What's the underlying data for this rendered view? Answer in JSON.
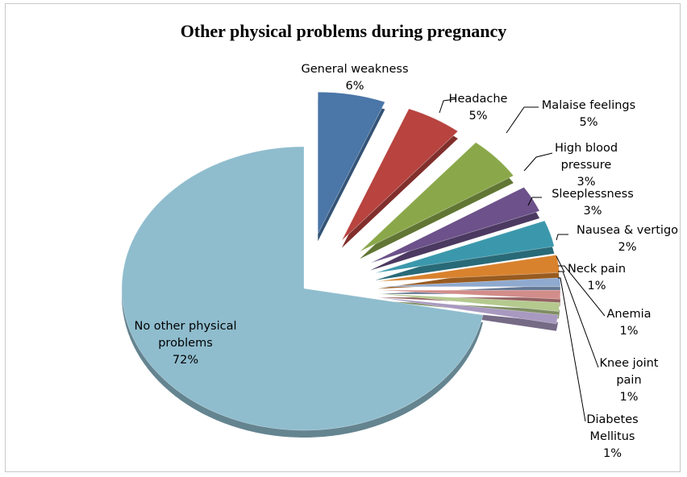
{
  "chart_data": {
    "type": "pie",
    "title": "Other physical problems during pregnancy",
    "categories": [
      "General weakness",
      "Headache",
      "Malaise feelings",
      "High blood pressure",
      "Sleeplessness",
      "Nausea & vertigo",
      "Neck pain",
      "Anemia",
      "Knee joint pain",
      "Diabetes Mellitus",
      "No other physical problems"
    ],
    "values": [
      6,
      5,
      5,
      3,
      3,
      2,
      1,
      1,
      1,
      1,
      72
    ],
    "value_labels": [
      "6%",
      "5%",
      "5%",
      "3%",
      "3%",
      "2%",
      "1%",
      "1%",
      "1%",
      "1%",
      "72%"
    ],
    "colors": [
      "#4a76a8",
      "#b8433f",
      "#8aa84a",
      "#6c518a",
      "#3b98ac",
      "#d9822e",
      "#8fa9cf",
      "#d28c8a",
      "#b4c98e",
      "#a899c0",
      "#8fbdce"
    ]
  }
}
